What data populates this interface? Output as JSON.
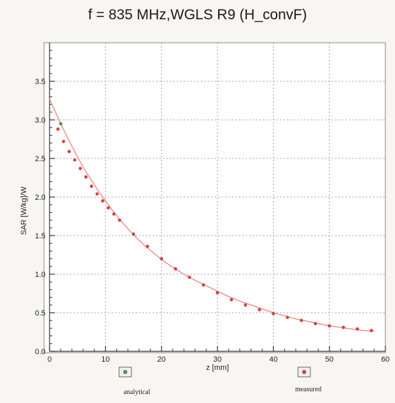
{
  "chart_data": {
    "type": "line",
    "title": "f = 835 MHz,WGLS R9 (H_convF)",
    "xlabel": "z [mm]",
    "ylabel": "SAR [W/kg]/W",
    "xlim": [
      0,
      60
    ],
    "ylim": [
      0.0,
      4.0
    ],
    "x_ticks": [
      "0",
      "10",
      "20",
      "30",
      "40",
      "50",
      "60"
    ],
    "y_ticks": [
      "0.0",
      "0.5",
      "1.0",
      "1.5",
      "2.0",
      "2.5",
      "3.0",
      "3.5"
    ],
    "grid": true,
    "legend": [
      {
        "label": "analytical",
        "color": "#4e8f4e"
      },
      {
        "label": "measured",
        "color": "#d94040"
      }
    ],
    "series": [
      {
        "name": "analytical",
        "color": "#4e8f4e",
        "x": [
          0,
          1,
          2,
          3,
          4,
          5,
          6,
          7,
          8,
          9,
          10,
          11,
          12,
          13,
          14,
          15,
          16,
          17,
          18,
          19,
          20,
          22,
          24,
          26,
          28,
          30,
          32,
          34,
          36,
          38,
          40,
          42,
          44,
          46,
          48,
          50,
          52,
          54,
          56,
          58
        ],
        "y": [
          3.27,
          3.11,
          2.95,
          2.8,
          2.66,
          2.52,
          2.39,
          2.27,
          2.16,
          2.05,
          1.95,
          1.85,
          1.76,
          1.67,
          1.59,
          1.51,
          1.44,
          1.37,
          1.31,
          1.25,
          1.19,
          1.09,
          1.0,
          0.92,
          0.85,
          0.78,
          0.71,
          0.65,
          0.6,
          0.55,
          0.5,
          0.46,
          0.42,
          0.39,
          0.36,
          0.33,
          0.31,
          0.29,
          0.27,
          0.26
        ]
      },
      {
        "name": "measured",
        "color": "#d94040",
        "x": [
          1.5,
          2.5,
          3.5,
          4.5,
          5.5,
          6.5,
          7.5,
          8.5,
          9.5,
          10.5,
          11.5,
          12.5,
          15,
          17.5,
          20,
          22.5,
          25,
          27.5,
          30,
          32.5,
          35,
          37.5,
          40,
          42.5,
          45,
          47.5,
          50,
          52.5,
          55,
          57.5
        ],
        "y": [
          2.88,
          2.72,
          2.59,
          2.48,
          2.37,
          2.26,
          2.14,
          2.04,
          1.95,
          1.86,
          1.78,
          1.7,
          1.52,
          1.36,
          1.2,
          1.07,
          0.96,
          0.86,
          0.76,
          0.67,
          0.6,
          0.54,
          0.49,
          0.44,
          0.4,
          0.36,
          0.33,
          0.31,
          0.29,
          0.27
        ]
      }
    ]
  }
}
